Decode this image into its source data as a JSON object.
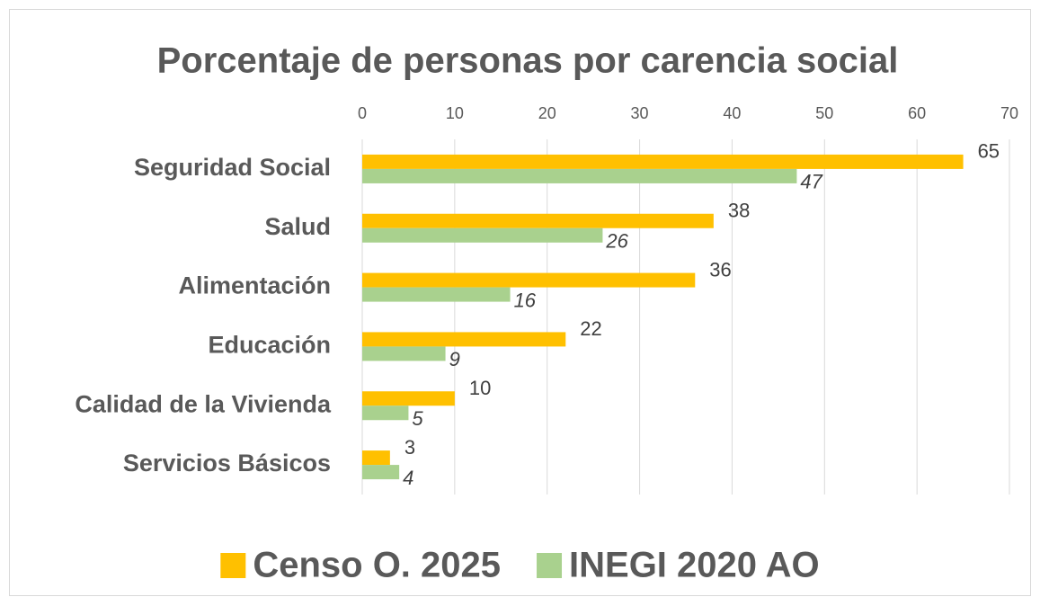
{
  "chart_data": {
    "type": "bar",
    "orientation": "horizontal",
    "title": "Porcentaje de personas por carencia social",
    "categories": [
      "Seguridad Social",
      "Salud",
      "Alimentación",
      "Educación",
      "Calidad de la Vivienda",
      "Servicios Básicos"
    ],
    "series": [
      {
        "name": "Censo O. 2025",
        "color": "#FFC000",
        "values": [
          65,
          38,
          36,
          22,
          10,
          3
        ]
      },
      {
        "name": "INEGI 2020 AO",
        "color": "#A9D18E",
        "values": [
          47,
          26,
          16,
          9,
          5,
          4
        ]
      }
    ],
    "xlim": [
      0,
      70
    ],
    "xticks": [
      0,
      10,
      20,
      30,
      40,
      50,
      60,
      70
    ],
    "grid": true,
    "legend": "bottom"
  }
}
